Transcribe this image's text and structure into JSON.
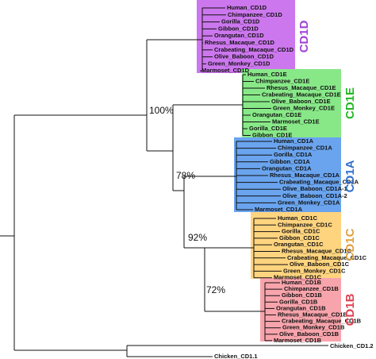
{
  "clades": [
    {
      "label": "CD1D",
      "leaves": [
        "Human_CD1D",
        "Chimpanzee_CD1D",
        "Gorilla_CD1D",
        "Gibbon_CD1D",
        "Orangutan_CD1D",
        "Rhesus_Macaque_CD1D",
        "Crabeating_Macaque_CD1D",
        "Olive_Baboon_CD1D",
        "Green_Monkey_CD1D",
        "Marmoset_CD1D"
      ]
    },
    {
      "label": "CD1E",
      "leaves": [
        "Human_CD1E",
        "Chimpanzee_CD1E",
        "Rhesus_Macaque_CD1E",
        "Crabeating_Macaque_CD1E",
        "Olive_Baboon_CD1E",
        "Green_Monkey_CD1E",
        "Orangutan_CD1E",
        "Marmoset_CD1E",
        "Gorilla_CD1E",
        "Gibbon_CD1E"
      ]
    },
    {
      "label": "CD1A",
      "leaves": [
        "Human_CD1A",
        "Chimpanzee_CD1A",
        "Gorilla_CD1A",
        "Gibbon_CD1A",
        "Orangutan_CD1A",
        "Rhesus_Macaque_CD1A",
        "Crabeating_Macaque_CD1A",
        "Olive_Baboon_CD1A-1",
        "Olive_Baboon_CD1A-2",
        "Green_Monkey_CD1A",
        "Marmoset_CD1A"
      ]
    },
    {
      "label": "CD1C",
      "leaves": [
        "Human_CD1C",
        "Chimpanzee_CD1C",
        "Gorilla_CD1C",
        "Gibbon_CD1C",
        "Orangutan_CD1C",
        "Rhesus_Macaque_CD1C",
        "Crabeating_Macaque_CD1C",
        "Olive_Baboon_CD1C",
        "Green_Monkey_CD1C",
        "Marmoset_CD1C"
      ]
    },
    {
      "label": "CD1B",
      "leaves": [
        "Human_CD1B",
        "Chimpanzee_CD1B",
        "Gibbon_CD1B",
        "Gorilla_CD1B",
        "Orangutan_CD1B",
        "Rhesus_Macaque_CD1B",
        "Crabeating_Macaque_CD1B",
        "Green_Monkey_CD1B",
        "Olive_Baboon_CD1B",
        "Marmoset_CD1B"
      ]
    }
  ],
  "bootstrap": [
    "100%",
    "78%",
    "92%",
    "72%"
  ],
  "outgroup": [
    "Chicken_CD1.1",
    "Chicken_CD1.2"
  ]
}
